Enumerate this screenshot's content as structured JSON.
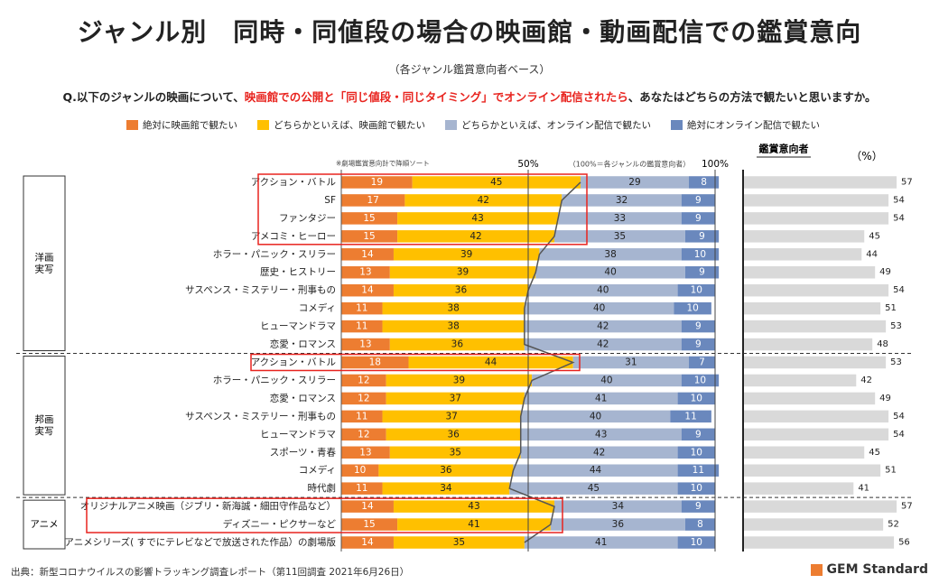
{
  "title": "ジャンル別　同時・同値段の場合の映画館・動画配信での鑑賞意向",
  "subtitle": "（各ジャンル鑑賞意向者ベース）",
  "question": {
    "prefix": "Q.以下のジャンルの映画について、",
    "highlight": "映画館での公開と「同じ値段・同じタイミング」でオンライン配信されたら",
    "suffix": "、あなたはどちらの方法で観たいと思いますか。"
  },
  "legend": [
    {
      "label": "絶対に映画館で観たい",
      "color": "#ed7d31"
    },
    {
      "label": "どちらかといえば、映画館で観たい",
      "color": "#ffc000"
    },
    {
      "label": "どちらかといえば、オンライン配信で観たい",
      "color": "#a6b5d0"
    },
    {
      "label": "絶対にオンライン配信で観たい",
      "color": "#6a88bd"
    }
  ],
  "notes": {
    "sort": "※劇場鑑賞意向計で降順ソート",
    "pct50": "50%",
    "base": "（100%＝各ジャンルの鑑賞意向者）",
    "pct100": "100%",
    "intent_header": "鑑賞意向者",
    "unit": "（%）"
  },
  "groups": [
    {
      "label": "洋画\n実写",
      "rows": [
        0,
        9
      ]
    },
    {
      "label": "邦画\n実写",
      "rows": [
        10,
        17
      ]
    },
    {
      "label": "アニメ",
      "rows": [
        18,
        20
      ]
    }
  ],
  "chart_data": {
    "type": "bar",
    "stacked": true,
    "orientation": "horizontal",
    "xlim": [
      0,
      100
    ],
    "categories": [
      "アクション・バトル",
      "SF",
      "ファンタジー",
      "アメコミ・ヒーロー",
      "ホラー・パニック・スリラー",
      "歴史・ヒストリー",
      "サスペンス・ミステリー・刑事もの",
      "コメディ",
      "ヒューマンドラマ",
      "恋愛・ロマンス",
      "アクション・バトル",
      "ホラー・パニック・スリラー",
      "恋愛・ロマンス",
      "サスペンス・ミステリー・刑事もの",
      "ヒューマンドラマ",
      "スポーツ・青春",
      "コメディ",
      "時代劇",
      "オリジナルアニメ映画（ジブリ・新海誠・細田守作品など）",
      "ディズニー・ピクサーなど",
      "アニメシリーズ( すでにテレビなどで放送された作品）の劇場版"
    ],
    "series": [
      {
        "name": "絶対に映画館で観たい",
        "values": [
          19,
          17,
          15,
          15,
          14,
          13,
          14,
          11,
          11,
          13,
          18,
          12,
          12,
          11,
          12,
          13,
          10,
          11,
          14,
          15,
          14
        ]
      },
      {
        "name": "どちらかといえば、映画館で観たい",
        "values": [
          45,
          42,
          43,
          42,
          39,
          39,
          36,
          38,
          38,
          36,
          44,
          39,
          37,
          37,
          36,
          35,
          36,
          34,
          43,
          41,
          35
        ]
      },
      {
        "name": "どちらかといえば、オンライン配信で観たい",
        "values": [
          29,
          32,
          33,
          35,
          38,
          40,
          40,
          40,
          42,
          42,
          31,
          40,
          41,
          40,
          43,
          42,
          44,
          45,
          34,
          36,
          41
        ]
      },
      {
        "name": "絶対にオンライン配信で観たい",
        "values": [
          8,
          9,
          9,
          9,
          10,
          9,
          10,
          10,
          9,
          9,
          7,
          10,
          10,
          11,
          9,
          10,
          11,
          10,
          9,
          8,
          10
        ]
      }
    ],
    "intent": {
      "name": "鑑賞意向者",
      "unit": "%",
      "values": [
        57,
        54,
        54,
        45,
        44,
        49,
        54,
        51,
        53,
        48,
        53,
        42,
        49,
        54,
        54,
        45,
        51,
        41,
        57,
        52,
        56
      ]
    },
    "highlighted_rows": [
      [
        0,
        3
      ],
      [
        10,
        10
      ],
      [
        18,
        19
      ]
    ]
  },
  "source": "出典：新型コロナウイルスの影響トラッキング調査レポート（第11回調査 2021年6月26日）",
  "logo": "GEM Standard"
}
